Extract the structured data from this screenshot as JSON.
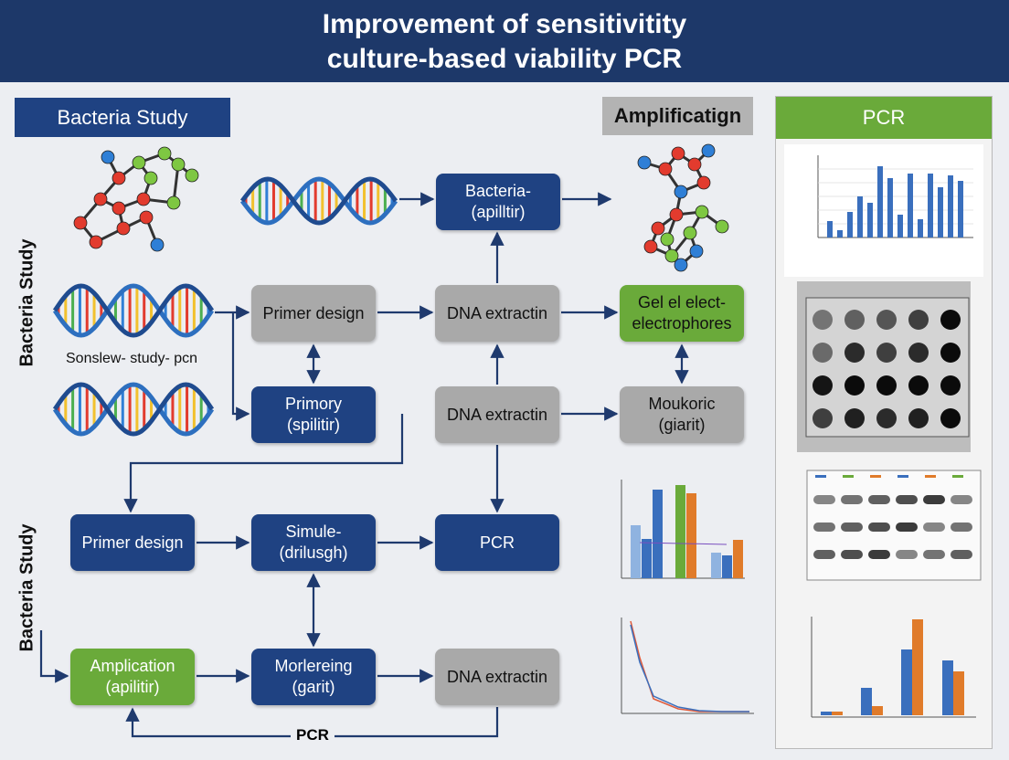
{
  "header": {
    "title_lines": [
      "Improvement of sensitivitity",
      "culture-based viability PCR"
    ]
  },
  "sections": {
    "left": "Bacteria Study",
    "middle": "Amplificatign",
    "right": "PCR"
  },
  "side_labels": [
    "Bacteria Study",
    "Bacteria Study"
  ],
  "helix_caption": "Sonslew- study- pcn",
  "nodes": [
    {
      "lines": [
        "Bacteria-",
        "(apilltir)"
      ]
    },
    {
      "lines": [
        "Primer design"
      ]
    },
    {
      "lines": [
        "DNA extractin"
      ]
    },
    {
      "lines": [
        "Gel el elect-",
        "electrophores"
      ]
    },
    {
      "lines": [
        "Primory",
        "(spilitir)"
      ]
    },
    {
      "lines": [
        "DNA extractin"
      ]
    },
    {
      "lines": [
        "Moukoric",
        "(giarit)"
      ]
    },
    {
      "lines": [
        "Primer design"
      ]
    },
    {
      "lines": [
        "Simule-",
        "(drilusgh)"
      ]
    },
    {
      "lines": [
        "PCR"
      ]
    },
    {
      "lines": [
        "Amplication",
        "(apilitir)"
      ]
    },
    {
      "lines": [
        "Morlereing",
        "(garit)"
      ]
    },
    {
      "lines": [
        "DNA extractin"
      ]
    }
  ],
  "edge_label": "PCR"
}
